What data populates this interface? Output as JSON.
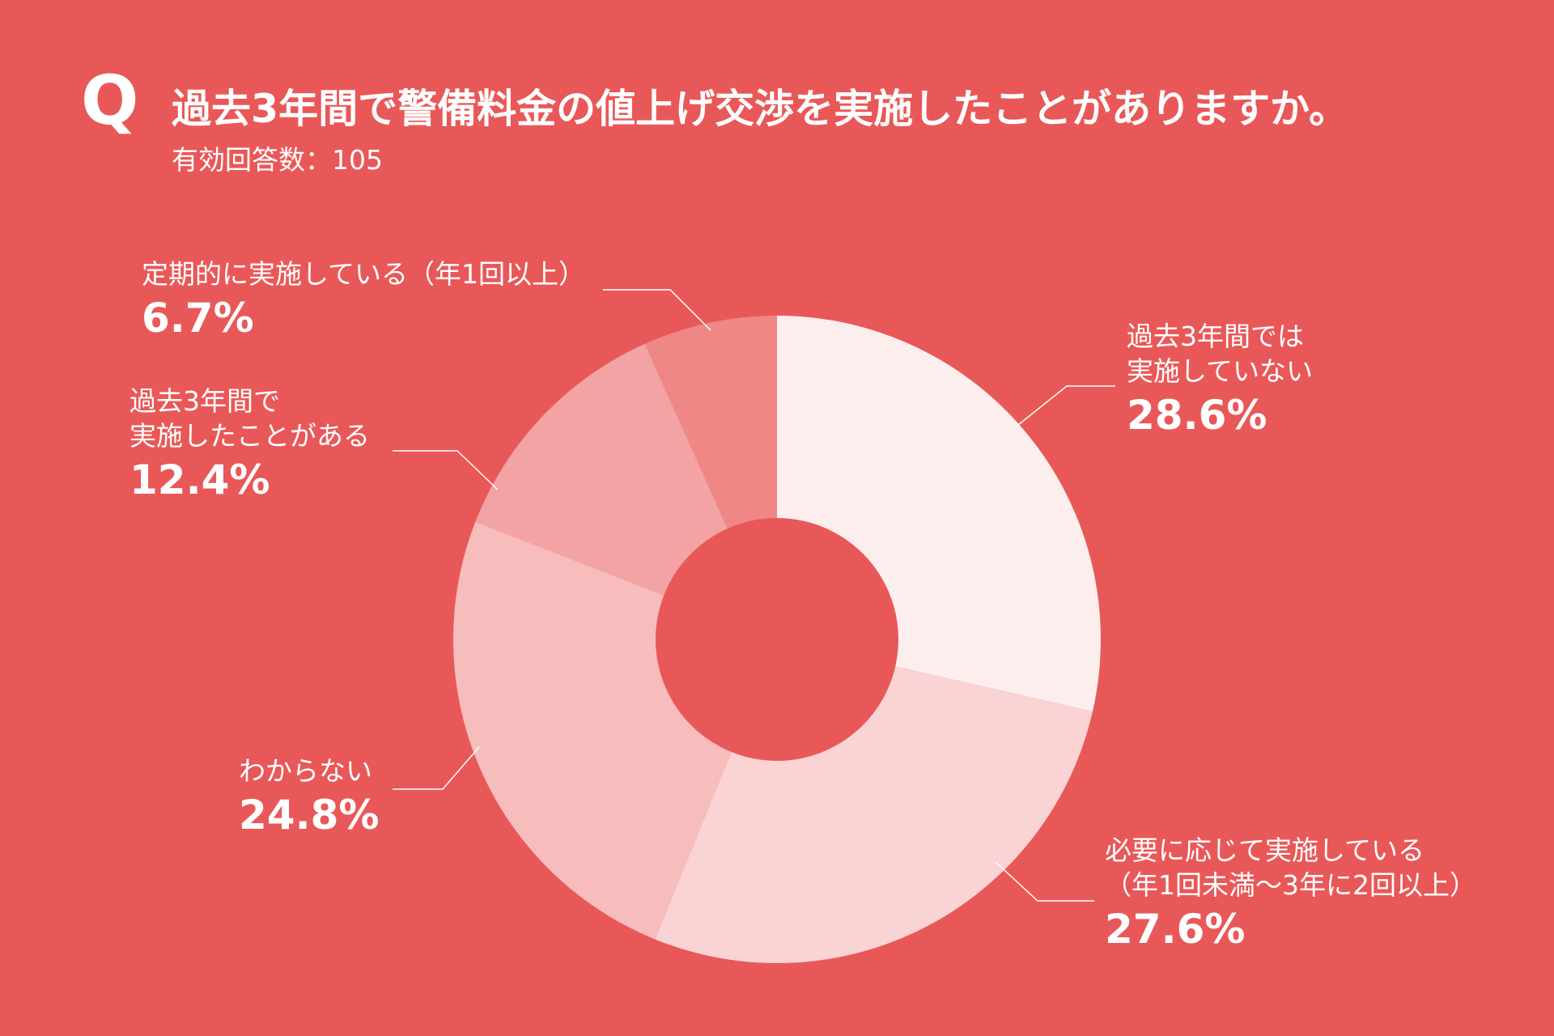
{
  "header": {
    "q_mark": "Q",
    "title": "過去3年間で警備料金の値上げ交渉を実施したことがありますか。",
    "subtitle": "有効回答数：105"
  },
  "chart_data": {
    "type": "pie",
    "donut": true,
    "categories": [
      "過去3年間では実施していない",
      "必要に応じて実施している（年1回未満〜3年に2回以上）",
      "わからない",
      "過去3年間で実施したことがある",
      "定期的に実施している（年1回以上）"
    ],
    "values": [
      28.6,
      27.6,
      24.8,
      12.4,
      6.7
    ],
    "unit": "%",
    "colors": [
      "#fdeeee",
      "#fad3d4",
      "#f7bcbc",
      "#f3a3a3",
      "#ef8787"
    ],
    "labels": [
      {
        "lines": [
          "過去3年間では",
          "実施していない"
        ],
        "pct": "28.6%"
      },
      {
        "lines": [
          "必要に応じて実施している",
          "（年1回未満〜3年に2回以上）"
        ],
        "pct": "27.6%"
      },
      {
        "lines": [
          "わからない"
        ],
        "pct": "24.8%"
      },
      {
        "lines": [
          "過去3年間で",
          "実施したことがある"
        ],
        "pct": "12.4%"
      },
      {
        "lines": [
          "定期的に実施している（年1回以上）"
        ],
        "pct": "6.7%"
      }
    ]
  },
  "colors": {
    "background": "#e95858",
    "text": "#ffffff"
  }
}
